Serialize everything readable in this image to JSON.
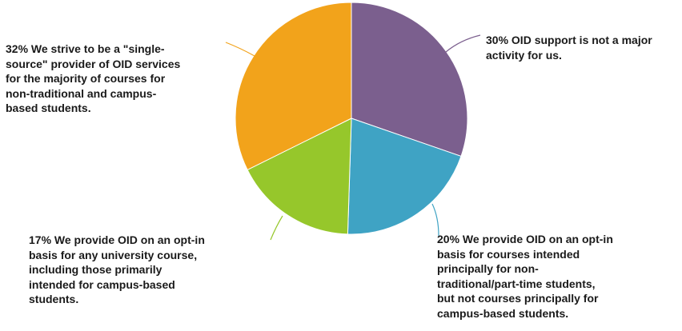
{
  "chart_data": {
    "type": "pie",
    "slices": [
      {
        "label": "30% OID support is not a major activity for us.",
        "value": 30,
        "color": "#7B5F8E"
      },
      {
        "label": "20% We provide OID on an opt-in basis for courses intended principally for non-traditional/part-time students, but not courses principally for campus-based students.",
        "value": 20,
        "color": "#3FA3C4"
      },
      {
        "label": "17% We provide OID on an opt-in basis for any university course, including those primarily intended for campus-based students.",
        "value": 17,
        "color": "#96C72B"
      },
      {
        "label": "32% We strive to be a \"single-source\" provider of OID services for the majority of courses for non-traditional and campus-based students.",
        "value": 32,
        "color": "#F2A31B"
      }
    ],
    "start": "top",
    "direction": "clockwise"
  },
  "labels": {
    "slice_30": "30% OID support is not a major\nactivity for us.",
    "slice_20": "20% We provide OID on an opt-in\nbasis for courses intended\nprincipally for non-\ntraditional/part-time students,\nbut not courses principally for\ncampus-based students.",
    "slice_17": "17% We provide OID on an opt-in\nbasis for any university course,\nincluding those primarily\nintended for campus-based\nstudents.",
    "slice_32": "32% We strive to be a \"single-\nsource\" provider of OID services\nfor the majority of courses for\nnon-traditional and campus-\nbased students."
  }
}
